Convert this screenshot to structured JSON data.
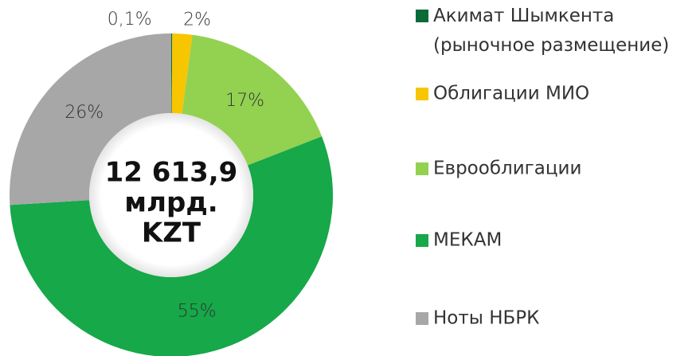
{
  "chart_data": {
    "type": "donut",
    "center_label": [
      "12 613,9",
      "млрд.",
      "KZT"
    ],
    "categories": [
      "Акимат Шымкента (рыночное размещение)",
      "Облигации МИО",
      "Еврооблигации",
      "МЕКАМ",
      "Ноты НБРК"
    ],
    "values": [
      0.1,
      2,
      17,
      55,
      26
    ],
    "value_labels": [
      "0,1%",
      "2%",
      "17%",
      "55%",
      "26%"
    ],
    "colors": [
      "#0b6a3a",
      "#f7c600",
      "#93d151",
      "#16a849",
      "#a7a7a7"
    ],
    "legend": "right"
  }
}
